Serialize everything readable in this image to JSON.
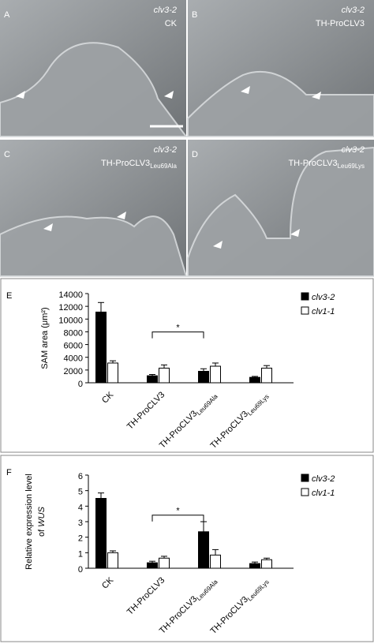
{
  "panels": [
    {
      "letter": "A",
      "genotype": "clv3-2",
      "treatment": "CK",
      "treatment_sub": null
    },
    {
      "letter": "B",
      "genotype": "clv3-2",
      "treatment": "TH-ProCLV3",
      "treatment_sub": null
    },
    {
      "letter": "C",
      "genotype": "clv3-2",
      "treatment": "TH-ProCLV3",
      "treatment_sub": "Leu69Ala"
    },
    {
      "letter": "D",
      "genotype": "clv3-2",
      "treatment": "TH-ProCLV3",
      "treatment_sub": "Leu69Lys"
    }
  ],
  "chart_data": [
    {
      "type": "bar",
      "panel": "E",
      "ylabel": "SAM area (μm²)",
      "categories": [
        "CK",
        "TH-ProCLV3",
        "TH-ProCLV3",
        "TH-ProCLV3"
      ],
      "category_subscripts": [
        null,
        null,
        "Leu69Ala",
        "Leu69Lys"
      ],
      "series": [
        {
          "name": "clv3-2",
          "color": "#000000",
          "values": [
            11100,
            1100,
            1800,
            850
          ],
          "errors": [
            1500,
            200,
            400,
            150
          ]
        },
        {
          "name": "clv1-1",
          "color": "#ffffff",
          "values": [
            3100,
            2300,
            2600,
            2300
          ],
          "errors": [
            350,
            500,
            500,
            400
          ]
        }
      ],
      "ylim": [
        0,
        14000
      ],
      "yticks": [
        0,
        2000,
        4000,
        6000,
        8000,
        10000,
        12000,
        14000
      ],
      "annotation": "*"
    },
    {
      "type": "bar",
      "panel": "F",
      "ylabel": "Relative expression level",
      "ylabel2": "of",
      "ylabel2_italic": "WUS",
      "categories": [
        "CK",
        "TH-ProCLV3",
        "TH-ProCLV3",
        "TH-ProCLV3"
      ],
      "category_subscripts": [
        null,
        null,
        "Leu69Ala",
        "Leu69Lys"
      ],
      "series": [
        {
          "name": "clv3-2",
          "color": "#000000",
          "values": [
            4.5,
            0.35,
            2.35,
            0.3
          ],
          "errors": [
            0.35,
            0.1,
            0.65,
            0.1
          ]
        },
        {
          "name": "clv1-1",
          "color": "#ffffff",
          "values": [
            1.0,
            0.65,
            0.85,
            0.55
          ],
          "errors": [
            0.12,
            0.12,
            0.35,
            0.1
          ]
        }
      ],
      "ylim": [
        0,
        6
      ],
      "yticks": [
        0,
        1,
        2,
        3,
        4,
        5,
        6
      ],
      "annotation": "*"
    }
  ]
}
